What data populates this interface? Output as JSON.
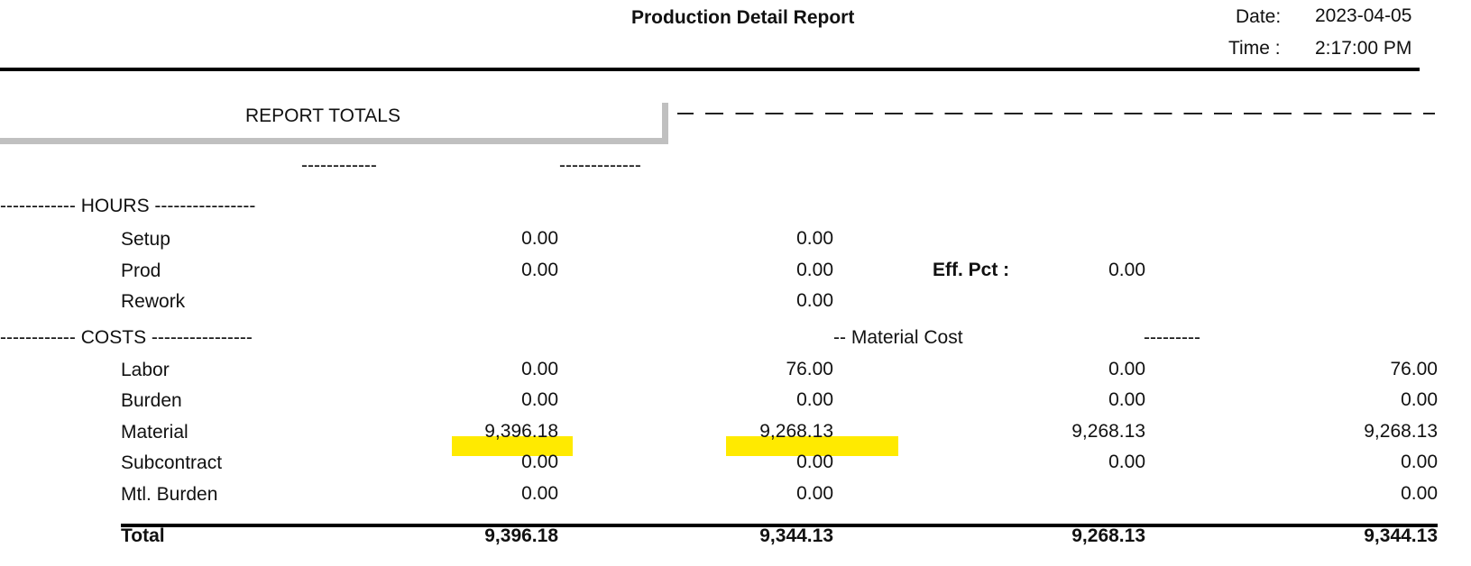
{
  "header": {
    "title": "Production Detail Report",
    "date_label": "Date:",
    "date_value": "2023-04-05",
    "time_label": "Time :",
    "time_value": "2:17:00 PM"
  },
  "section": {
    "title": "REPORT TOTALS",
    "col_dash_1": "------------",
    "col_dash_2": "-------------"
  },
  "hours": {
    "heading": "------------ HOURS ----------------",
    "rows": [
      {
        "label": "Setup",
        "c1": "0.00",
        "c2": "0.00"
      },
      {
        "label": "Prod",
        "c1": "0.00",
        "c2": "0.00"
      },
      {
        "label": "Rework",
        "c2": "0.00"
      }
    ],
    "eff_label": "Eff. Pct :",
    "eff_value": "0.00"
  },
  "costs": {
    "heading": "------------ COSTS ----------------",
    "material_cost_label": "-- Material Cost",
    "material_cost_dash": "---------",
    "rows": [
      {
        "label": "Labor",
        "c1": "0.00",
        "c2": "76.00",
        "c3": "0.00",
        "c4": "76.00"
      },
      {
        "label": "Burden",
        "c1": "0.00",
        "c2": "0.00",
        "c3": "0.00",
        "c4": "0.00"
      },
      {
        "label": "Material",
        "c1": "9,396.18",
        "c2": "9,268.13",
        "c3": "9,268.13",
        "c4": "9,268.13"
      },
      {
        "label": "Subcontract",
        "c1": "0.00",
        "c2": "0.00",
        "c3": "0.00",
        "c4": "0.00"
      },
      {
        "label": "Mtl. Burden",
        "c1": "0.00",
        "c2": "0.00",
        "c4": "0.00"
      }
    ],
    "total": {
      "label": "Total",
      "c1": "9,396.18",
      "c2": "9,344.13",
      "c3": "9,268.13",
      "c4": "9,344.13"
    }
  },
  "highlight_color": "#ffea00"
}
